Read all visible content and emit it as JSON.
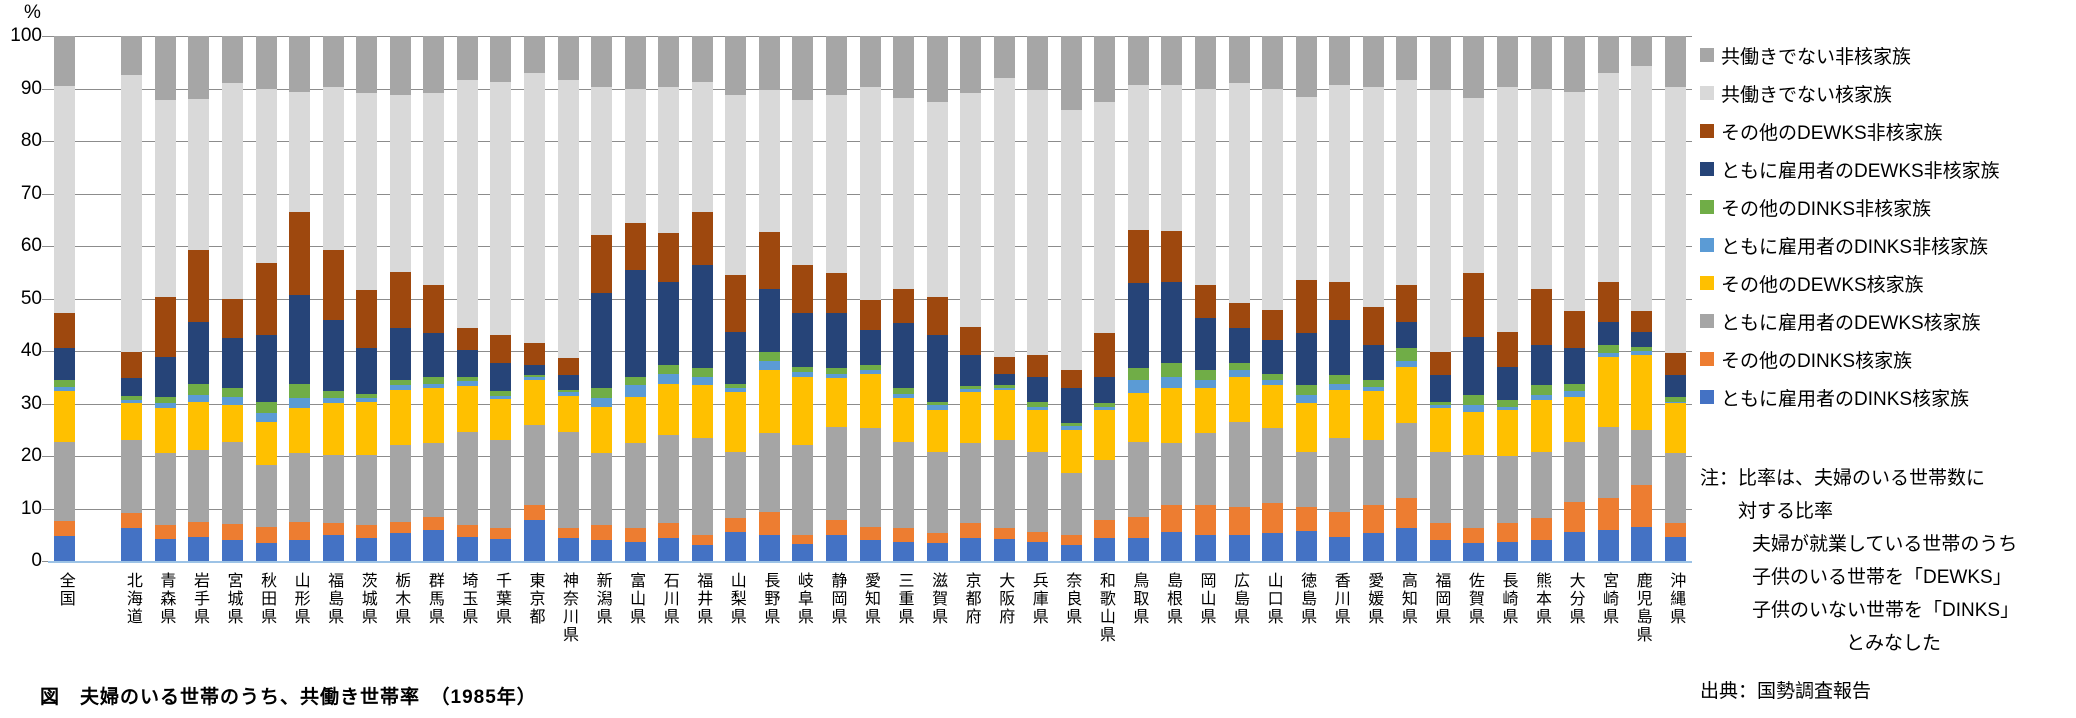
{
  "title": "図　夫婦のいる世帯のうち、共働き世帯率　（1985年）",
  "y_axis": {
    "unit_label": "%",
    "ticks": [
      100,
      90,
      80,
      70,
      60,
      50,
      40,
      30,
      20,
      10,
      0
    ]
  },
  "notes": {
    "lines": [
      {
        "text": "注：比率は、夫婦のいる世帯数に",
        "indent": 0
      },
      {
        "text": "対する比率",
        "indent": 1
      },
      {
        "text": "夫婦が就業している世帯のうち",
        "indent": 2
      },
      {
        "text": "子供のいる世帯を「DEWKS」",
        "indent": 2
      },
      {
        "text": "子供のいない世帯を「DINKS」",
        "indent": 2
      },
      {
        "text": "とみなした",
        "indent": 3
      }
    ],
    "source": "出典：国勢調査報告"
  },
  "chart_data": {
    "type": "bar",
    "stacked": true,
    "unit": "%",
    "ylim": [
      0,
      100
    ],
    "grid": true,
    "legend_position": "right",
    "legend_note": "legend lists series top-to-bottom as the reverse of stacking order",
    "gap_after_first_category": true,
    "categories": [
      "全国",
      "北海道",
      "青森県",
      "岩手県",
      "宮城県",
      "秋田県",
      "山形県",
      "福島県",
      "茨城県",
      "栃木県",
      "群馬県",
      "埼玉県",
      "千葉県",
      "東京都",
      "神奈川県",
      "新潟県",
      "富山県",
      "石川県",
      "福井県",
      "山梨県",
      "長野県",
      "岐阜県",
      "静岡県",
      "愛知県",
      "三重県",
      "滋賀県",
      "京都府",
      "大阪府",
      "兵庫県",
      "奈良県",
      "和歌山県",
      "鳥取県",
      "島根県",
      "岡山県",
      "広島県",
      "山口県",
      "徳島県",
      "香川県",
      "愛媛県",
      "高知県",
      "福岡県",
      "佐賀県",
      "長崎県",
      "熊本県",
      "大分県",
      "宮崎県",
      "鹿児島県",
      "沖縄県"
    ],
    "series": [
      {
        "name": "ともに雇用者のDINKS核家族",
        "color": "#4472C4",
        "values": [
          4.8,
          6.3,
          4.2,
          4.5,
          4.0,
          3.5,
          4.0,
          5.0,
          4.3,
          5.3,
          5.9,
          4.6,
          4.2,
          7.8,
          4.4,
          4.0,
          3.7,
          4.3,
          3.0,
          5.6,
          5.0,
          3.2,
          5.0,
          4.0,
          3.7,
          3.4,
          4.3,
          4.2,
          3.7,
          3.0,
          4.4,
          4.4,
          5.6,
          5.0,
          5.0,
          5.3,
          5.7,
          4.6,
          5.3,
          6.2,
          4.0,
          3.5,
          3.7,
          4.0,
          5.6,
          5.9,
          6.5,
          4.6
        ]
      },
      {
        "name": "その他のDINKS核家族",
        "color": "#ED7D31",
        "values": [
          2.8,
          2.9,
          2.6,
          3.0,
          3.0,
          3.0,
          3.5,
          2.2,
          2.6,
          2.2,
          2.5,
          2.3,
          2.0,
          2.9,
          1.8,
          2.9,
          2.5,
          2.9,
          2.0,
          2.5,
          4.4,
          1.8,
          2.8,
          2.5,
          2.5,
          1.9,
          2.9,
          2.0,
          1.9,
          2.0,
          3.4,
          4.0,
          5.1,
          5.7,
          5.3,
          5.7,
          4.6,
          4.8,
          5.4,
          5.7,
          3.2,
          2.7,
          3.5,
          4.1,
          5.7,
          6.0,
          8.0,
          2.6
        ]
      },
      {
        "name": "ともに雇用者のDEWKS核家族",
        "color": "#A5A5A5",
        "values": [
          15.1,
          13.8,
          13.7,
          13.6,
          15.7,
          11.8,
          13.0,
          13.0,
          13.3,
          14.6,
          14.0,
          17.7,
          16.8,
          15.2,
          18.4,
          13.6,
          16.2,
          16.8,
          18.4,
          12.7,
          14.9,
          17.1,
          17.8,
          18.8,
          16.5,
          15.5,
          15.2,
          16.8,
          15.2,
          11.7,
          11.4,
          14.3,
          11.7,
          13.6,
          16.2,
          14.3,
          10.5,
          14.0,
          12.3,
          14.3,
          13.6,
          14.0,
          12.7,
          12.7,
          11.4,
          13.7,
          10.5,
          13.3
        ]
      },
      {
        "name": "その他のDEWKS核家族",
        "color": "#FFC000",
        "values": [
          9.6,
          7.0,
          8.7,
          9.2,
          7.0,
          8.2,
          8.6,
          9.8,
          10.0,
          10.5,
          10.5,
          8.8,
          7.9,
          8.6,
          6.9,
          8.9,
          8.9,
          9.8,
          10.1,
          11.3,
          12.1,
          13.0,
          9.2,
          10.4,
          8.3,
          8.0,
          9.7,
          9.6,
          8.0,
          8.3,
          9.6,
          9.2,
          10.5,
          8.6,
          8.6,
          8.2,
          9.2,
          9.2,
          9.3,
          10.8,
          8.3,
          8.2,
          8.9,
          9.9,
          8.6,
          13.3,
          14.2,
          9.5
        ]
      },
      {
        "name": "ともに雇用者のDINKS非核家族",
        "color": "#5B9BD5",
        "values": [
          0.9,
          0.6,
          0.8,
          1.3,
          1.6,
          1.6,
          1.9,
          1.0,
          0.8,
          0.9,
          0.9,
          0.8,
          0.6,
          0.5,
          0.6,
          1.6,
          2.2,
          1.9,
          1.6,
          0.8,
          1.6,
          0.9,
          0.9,
          0.7,
          0.9,
          0.9,
          0.6,
          0.4,
          0.6,
          0.7,
          0.6,
          2.6,
          2.2,
          1.6,
          1.3,
          1.0,
          1.6,
          1.2,
          0.9,
          1.0,
          0.6,
          1.3,
          0.6,
          0.9,
          1.0,
          0.7,
          0.7,
          0.3
        ]
      },
      {
        "name": "その他のDINKS非核家族",
        "color": "#70AD47",
        "values": [
          1.3,
          0.8,
          1.3,
          2.2,
          1.6,
          2.2,
          2.8,
          1.3,
          0.9,
          1.0,
          1.3,
          0.9,
          0.8,
          0.4,
          0.5,
          1.9,
          1.6,
          1.6,
          1.6,
          0.9,
          1.9,
          1.0,
          1.0,
          0.9,
          1.0,
          0.6,
          0.7,
          0.5,
          0.9,
          0.5,
          0.6,
          2.2,
          2.6,
          1.9,
          1.3,
          1.2,
          1.9,
          1.6,
          1.3,
          2.5,
          0.6,
          1.9,
          1.3,
          1.9,
          1.5,
          1.5,
          0.9,
          1.0
        ]
      },
      {
        "name": "ともに雇用者のDEWKS非核家族",
        "color": "#264478",
        "values": [
          6.0,
          3.4,
          7.6,
          11.8,
          9.5,
          12.7,
          16.9,
          13.6,
          8.6,
          9.8,
          8.3,
          5.1,
          5.4,
          1.9,
          2.8,
          18.1,
          20.3,
          15.9,
          19.7,
          9.9,
          12.0,
          10.2,
          10.5,
          6.7,
          12.4,
          12.7,
          5.8,
          2.2,
          4.8,
          6.7,
          5.1,
          16.2,
          15.5,
          9.8,
          6.6,
          6.4,
          9.9,
          10.5,
          6.6,
          5.1,
          5.1,
          11.1,
          6.3,
          7.6,
          6.7,
          4.5,
          2.9,
          4.1
        ]
      },
      {
        "name": "その他のDEWKS非核家族",
        "color": "#9E480E",
        "values": [
          6.7,
          5.1,
          11.4,
          13.6,
          7.6,
          13.7,
          15.8,
          13.3,
          11.1,
          10.8,
          9.2,
          4.1,
          5.3,
          4.2,
          3.2,
          11.1,
          8.9,
          9.2,
          10.1,
          10.8,
          10.8,
          9.2,
          7.6,
          5.7,
          6.6,
          7.3,
          5.4,
          3.2,
          4.1,
          3.5,
          8.3,
          10.1,
          9.7,
          6.4,
          4.8,
          5.7,
          10.1,
          7.3,
          7.2,
          7.0,
          4.5,
          12.1,
          6.7,
          10.8,
          7.1,
          7.6,
          3.9,
          4.2
        ]
      },
      {
        "name": "共働きでない核家族",
        "color": "#D9D9D9",
        "values": [
          43.3,
          52.7,
          37.5,
          28.8,
          41.0,
          33.3,
          22.9,
          31.1,
          37.5,
          33.7,
          36.5,
          47.3,
          48.3,
          51.4,
          53.0,
          28.2,
          25.7,
          27.9,
          24.8,
          34.3,
          27.0,
          31.4,
          34.0,
          40.6,
          36.2,
          37.2,
          44.5,
          53.1,
          50.5,
          49.6,
          44.1,
          27.7,
          27.8,
          37.4,
          41.9,
          42.2,
          34.9,
          37.5,
          42.0,
          39.0,
          49.8,
          33.3,
          46.6,
          38.1,
          41.8,
          39.7,
          46.6,
          50.7
        ]
      },
      {
        "name": "共働きでない非核家族",
        "color": "#A6A6A6",
        "values": [
          9.5,
          7.4,
          12.2,
          12.0,
          9.0,
          10.0,
          10.6,
          9.7,
          10.9,
          11.2,
          10.9,
          8.4,
          8.7,
          7.1,
          8.4,
          9.7,
          10.0,
          9.7,
          8.7,
          11.2,
          10.3,
          12.2,
          11.2,
          9.7,
          11.9,
          12.5,
          10.9,
          8.0,
          10.3,
          14.0,
          12.5,
          9.3,
          9.3,
          10.0,
          9.0,
          10.0,
          11.6,
          9.3,
          9.7,
          8.4,
          10.3,
          11.9,
          9.7,
          10.0,
          10.6,
          7.1,
          5.8,
          9.7
        ]
      }
    ]
  }
}
